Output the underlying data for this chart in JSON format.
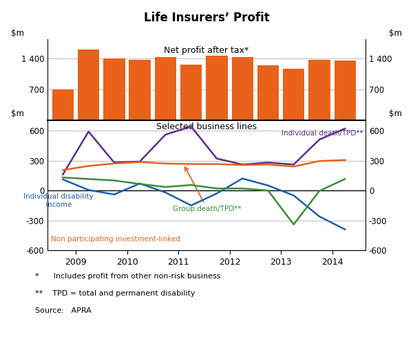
{
  "title": "Life Insurers’ Profit",
  "bar_label": "Net profit after tax*",
  "line_label": "Selected business lines",
  "bar_color": "#E8621A",
  "bar_x": [
    2008.75,
    2009.25,
    2009.75,
    2010.25,
    2010.75,
    2011.25,
    2011.75,
    2012.25,
    2012.75,
    2013.25,
    2013.75,
    2014.25
  ],
  "bar_values": [
    700,
    1590,
    1390,
    1360,
    1430,
    1260,
    1460,
    1420,
    1240,
    1160,
    1360,
    1350
  ],
  "bar_width": 0.42,
  "bar_ylim": [
    0,
    1820
  ],
  "bar_yticks": [
    700,
    1400
  ],
  "bar_yticklabels": [
    "700",
    "1 400"
  ],
  "line_x": [
    2008.75,
    2009.25,
    2009.75,
    2010.25,
    2010.75,
    2011.25,
    2011.75,
    2012.25,
    2012.75,
    2013.25,
    2013.75,
    2014.25
  ],
  "individual_death": [
    160,
    590,
    280,
    290,
    560,
    640,
    320,
    260,
    280,
    260,
    510,
    620
  ],
  "non_participating": [
    205,
    245,
    270,
    285,
    270,
    265,
    265,
    255,
    260,
    240,
    295,
    305
  ],
  "individual_disability": [
    110,
    5,
    -40,
    70,
    -20,
    -150,
    -30,
    120,
    50,
    -50,
    -260,
    -390
  ],
  "group_death": [
    130,
    115,
    100,
    65,
    35,
    55,
    20,
    20,
    0,
    -340,
    -5,
    115
  ],
  "line_ylim": [
    -600,
    700
  ],
  "line_yticks": [
    -600,
    -300,
    0,
    300,
    600
  ],
  "line_yticklabels": [
    "-600",
    "-300",
    "0",
    "300",
    "600"
  ],
  "individual_death_color": "#5B2D8E",
  "non_participating_color": "#E8621A",
  "individual_disability_color": "#1B5FA8",
  "group_death_color": "#3A8C3A",
  "xlabel_ticks": [
    2009,
    2010,
    2011,
    2012,
    2013,
    2014
  ],
  "footnote1": "*      Includes profit from other non-risk business",
  "footnote2": "**    TPD = total and permanent disability",
  "footnote3": "Source:   APRA",
  "background_color": "#ffffff",
  "grid_color": "#bbbbbb"
}
